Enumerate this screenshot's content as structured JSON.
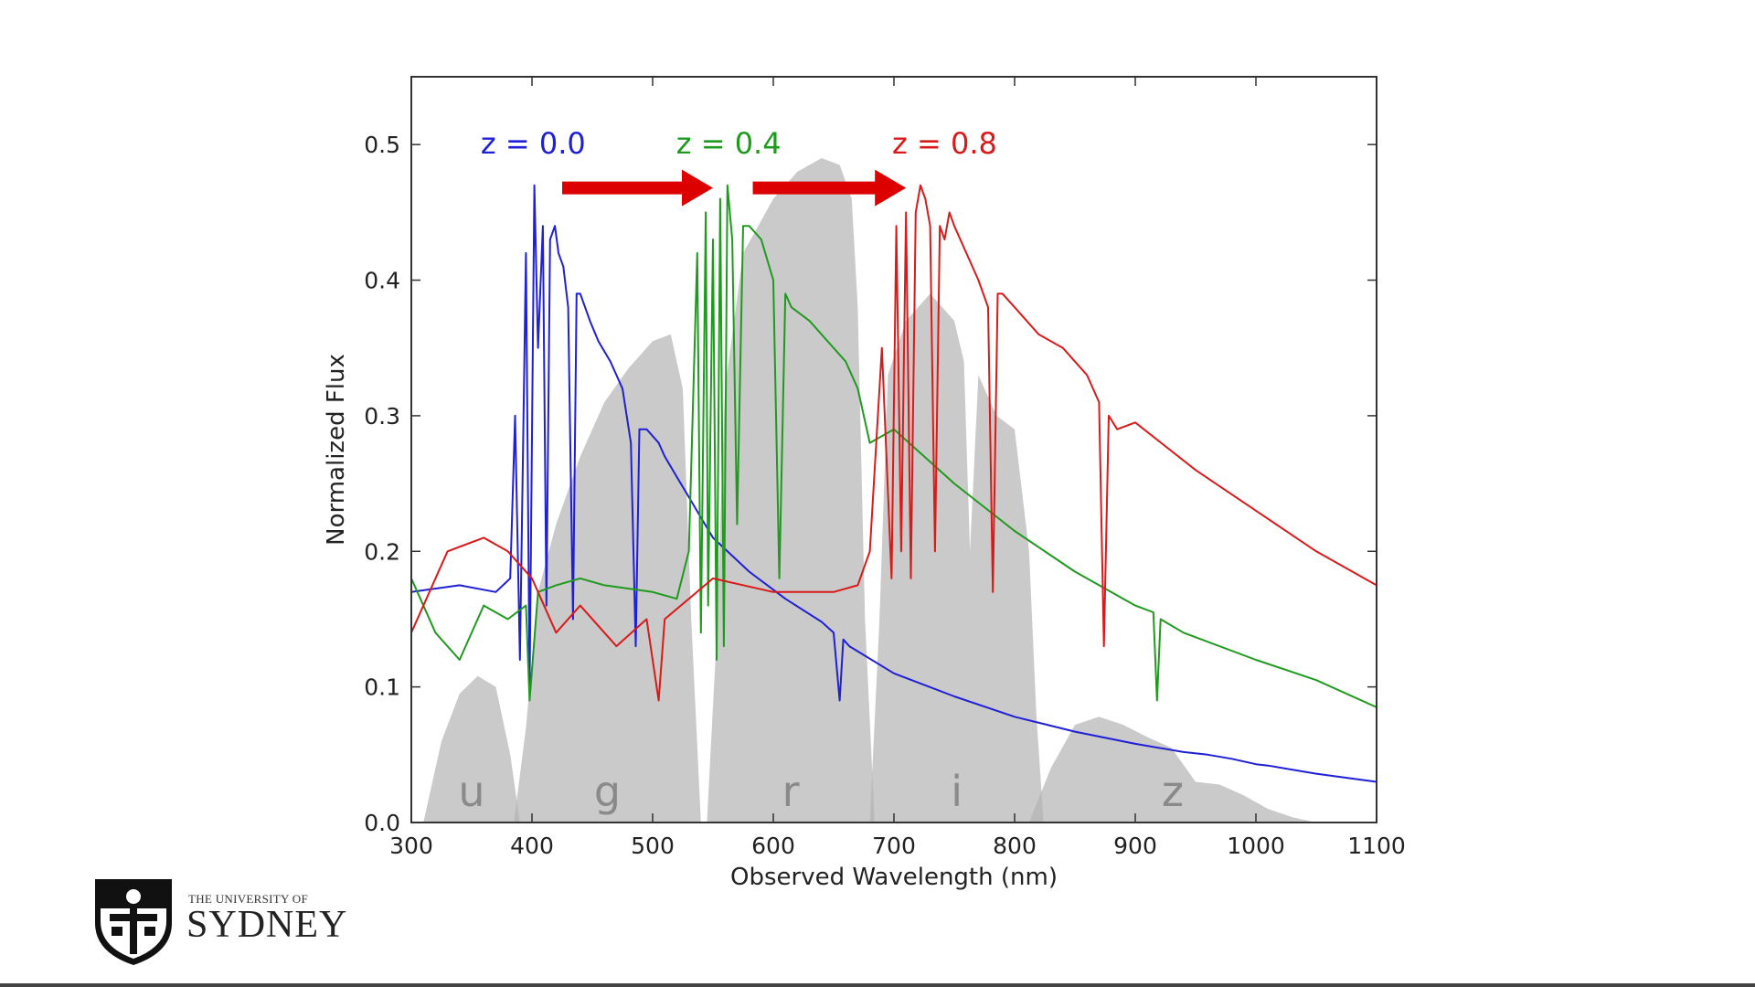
{
  "chart_data": {
    "type": "line",
    "title": "",
    "xlabel": "Observed Wavelength (nm)",
    "ylabel": "Normalized Flux",
    "xlim": [
      300,
      1100
    ],
    "ylim": [
      0.0,
      0.55
    ],
    "x_ticks": [
      300,
      400,
      500,
      600,
      700,
      800,
      900,
      1000,
      1100
    ],
    "y_ticks": [
      0.0,
      0.1,
      0.2,
      0.3,
      0.4,
      0.5
    ],
    "grid": false,
    "filters": [
      {
        "name": "u",
        "x": [
          310,
          325,
          340,
          355,
          370,
          382,
          390
        ],
        "y": [
          0.0,
          0.06,
          0.095,
          0.108,
          0.1,
          0.05,
          0.0
        ]
      },
      {
        "name": "g",
        "x": [
          385,
          395,
          405,
          420,
          440,
          460,
          480,
          500,
          515,
          525,
          532,
          540
        ],
        "y": [
          0.0,
          0.07,
          0.17,
          0.22,
          0.27,
          0.31,
          0.335,
          0.355,
          0.36,
          0.32,
          0.15,
          0.0
        ]
      },
      {
        "name": "r",
        "x": [
          545,
          552,
          560,
          575,
          600,
          620,
          640,
          655,
          665,
          670,
          676,
          684
        ],
        "y": [
          0.0,
          0.12,
          0.32,
          0.42,
          0.46,
          0.48,
          0.49,
          0.485,
          0.46,
          0.38,
          0.15,
          0.0
        ]
      },
      {
        "name": "i",
        "x": [
          680,
          688,
          695,
          710,
          730,
          750,
          758,
          763,
          770,
          785,
          800,
          812,
          818,
          824
        ],
        "y": [
          0.0,
          0.15,
          0.33,
          0.37,
          0.39,
          0.37,
          0.34,
          0.2,
          0.33,
          0.3,
          0.29,
          0.2,
          0.08,
          0.0
        ]
      },
      {
        "name": "z",
        "x": [
          812,
          830,
          850,
          870,
          890,
          910,
          930,
          950,
          970,
          990,
          1010,
          1030,
          1050
        ],
        "y": [
          0.0,
          0.04,
          0.072,
          0.078,
          0.072,
          0.063,
          0.055,
          0.03,
          0.028,
          0.02,
          0.01,
          0.004,
          0.0
        ]
      }
    ],
    "series": [
      {
        "name": "z = 0.0",
        "color": "#1f1fd6",
        "x": [
          300,
          340,
          370,
          382,
          386,
          390,
          395,
          398,
          402,
          405,
          409,
          412,
          415,
          419,
          422,
          426,
          430,
          434,
          437,
          440,
          444,
          448,
          455,
          465,
          475,
          482,
          486,
          489,
          495,
          505,
          510,
          520,
          530,
          540,
          550,
          580,
          610,
          640,
          650,
          655,
          658,
          663,
          700,
          750,
          800,
          850,
          900,
          940,
          960,
          980,
          1000,
          1010,
          1050,
          1100
        ],
        "y": [
          0.17,
          0.175,
          0.17,
          0.18,
          0.3,
          0.12,
          0.42,
          0.1,
          0.47,
          0.35,
          0.44,
          0.16,
          0.43,
          0.44,
          0.42,
          0.41,
          0.38,
          0.15,
          0.39,
          0.39,
          0.38,
          0.37,
          0.355,
          0.34,
          0.32,
          0.28,
          0.13,
          0.29,
          0.29,
          0.28,
          0.27,
          0.255,
          0.24,
          0.225,
          0.21,
          0.185,
          0.165,
          0.148,
          0.14,
          0.09,
          0.135,
          0.13,
          0.11,
          0.093,
          0.078,
          0.067,
          0.058,
          0.052,
          0.05,
          0.047,
          0.043,
          0.042,
          0.036,
          0.03
        ]
      },
      {
        "name": "z = 0.4",
        "color": "#1f9a1f",
        "x": [
          300,
          320,
          340,
          360,
          380,
          395,
          398,
          405,
          420,
          440,
          460,
          500,
          520,
          530,
          537,
          540,
          544,
          546,
          550,
          553,
          556,
          559,
          562,
          566,
          570,
          575,
          580,
          590,
          600,
          605,
          610,
          615,
          630,
          660,
          670,
          680,
          700,
          750,
          800,
          850,
          900,
          915,
          918,
          921,
          940,
          1000,
          1050,
          1100
        ],
        "y": [
          0.18,
          0.14,
          0.12,
          0.16,
          0.15,
          0.16,
          0.09,
          0.17,
          0.175,
          0.18,
          0.175,
          0.17,
          0.165,
          0.2,
          0.42,
          0.14,
          0.45,
          0.16,
          0.43,
          0.12,
          0.46,
          0.13,
          0.47,
          0.43,
          0.22,
          0.44,
          0.44,
          0.43,
          0.4,
          0.18,
          0.39,
          0.38,
          0.37,
          0.34,
          0.32,
          0.28,
          0.29,
          0.25,
          0.215,
          0.185,
          0.16,
          0.155,
          0.09,
          0.15,
          0.14,
          0.12,
          0.105,
          0.085
        ]
      },
      {
        "name": "z = 0.8",
        "color": "#d91a1a",
        "x": [
          300,
          330,
          360,
          380,
          400,
          420,
          440,
          470,
          495,
          505,
          510,
          550,
          600,
          650,
          670,
          680,
          690,
          698,
          702,
          706,
          710,
          714,
          718,
          722,
          726,
          730,
          734,
          738,
          742,
          746,
          750,
          760,
          770,
          778,
          782,
          786,
          790,
          800,
          820,
          840,
          860,
          870,
          874,
          878,
          885,
          900,
          950,
          1000,
          1050,
          1100
        ],
        "y": [
          0.14,
          0.2,
          0.21,
          0.2,
          0.18,
          0.14,
          0.16,
          0.13,
          0.15,
          0.09,
          0.15,
          0.18,
          0.17,
          0.17,
          0.175,
          0.2,
          0.35,
          0.18,
          0.44,
          0.2,
          0.45,
          0.18,
          0.45,
          0.47,
          0.46,
          0.44,
          0.2,
          0.44,
          0.43,
          0.45,
          0.44,
          0.42,
          0.4,
          0.38,
          0.17,
          0.39,
          0.39,
          0.38,
          0.36,
          0.35,
          0.33,
          0.31,
          0.13,
          0.3,
          0.29,
          0.295,
          0.26,
          0.23,
          0.2,
          0.175
        ]
      }
    ],
    "annotations": [
      {
        "text": "z = 0.0",
        "x": 401,
        "y": 0.5,
        "color": "#1f1fd6"
      },
      {
        "text": "z = 0.4",
        "x": 563,
        "y": 0.5,
        "color": "#1f9a1f"
      },
      {
        "text": "z = 0.8",
        "x": 742,
        "y": 0.5,
        "color": "#d91a1a"
      }
    ],
    "arrows": [
      {
        "from_x": 425,
        "to_x": 550,
        "y": 0.468,
        "color": "#dd0000"
      },
      {
        "from_x": 583,
        "to_x": 710,
        "y": 0.468,
        "color": "#dd0000"
      }
    ]
  },
  "logo": {
    "line1": "THE UNIVERSITY OF",
    "line2": "SYDNEY"
  }
}
